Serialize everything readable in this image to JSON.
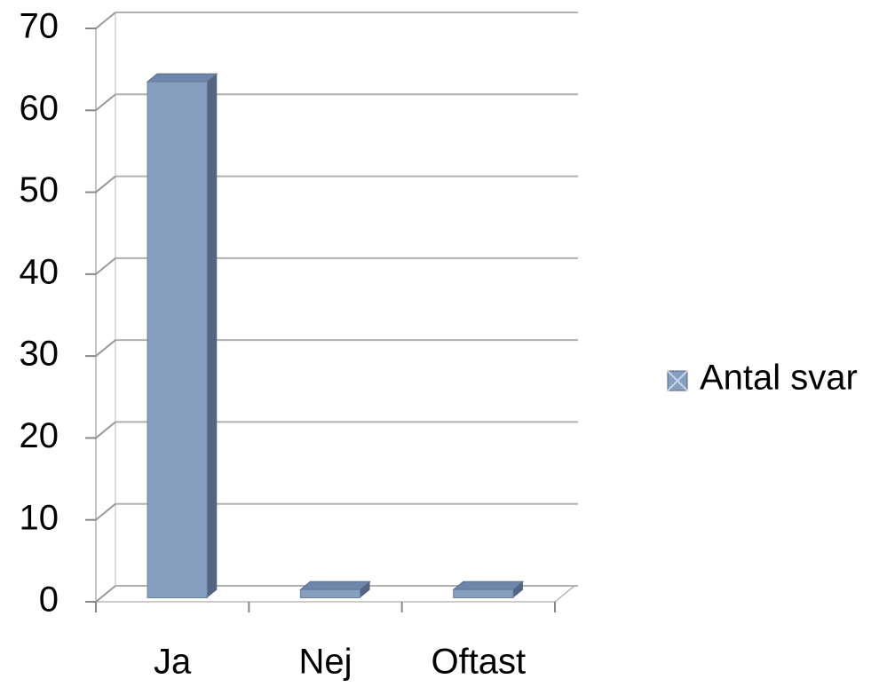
{
  "chart_data": {
    "type": "bar3d",
    "categories": [
      "Ja",
      "Nej",
      "Oftast"
    ],
    "series": [
      {
        "name": "Antal svar",
        "color": "#879fbf",
        "values": [
          63,
          1,
          1
        ]
      }
    ],
    "ylim": [
      0,
      70
    ],
    "yticks": [
      0,
      10,
      20,
      30,
      40,
      50,
      60,
      70
    ],
    "grid": true,
    "legend": "right"
  }
}
